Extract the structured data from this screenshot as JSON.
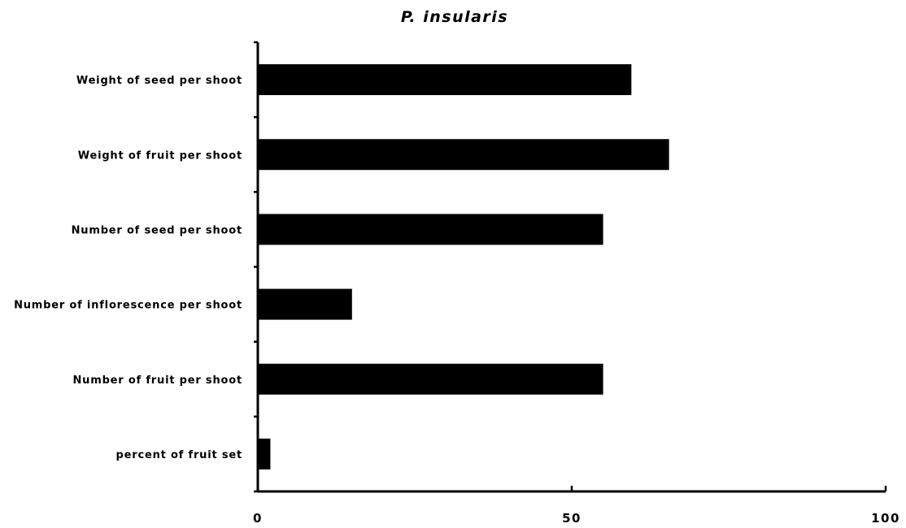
{
  "chart_data": {
    "type": "bar",
    "orientation": "horizontal",
    "title": "P. insularis",
    "categories": [
      "Weight of seed per shoot",
      "Weight of fruit per shoot",
      "Number of seed per shoot",
      "Number of inflorescence per shoot",
      "Number of fruit per shoot",
      "percent of fruit set"
    ],
    "values": [
      59.5,
      65.5,
      55,
      15,
      55,
      2
    ],
    "xlim": [
      0,
      100
    ],
    "x_ticks": [
      0,
      50,
      100
    ],
    "xlabel": "",
    "ylabel": "",
    "grid": false,
    "legend": "none",
    "bar_color": "#000000"
  }
}
